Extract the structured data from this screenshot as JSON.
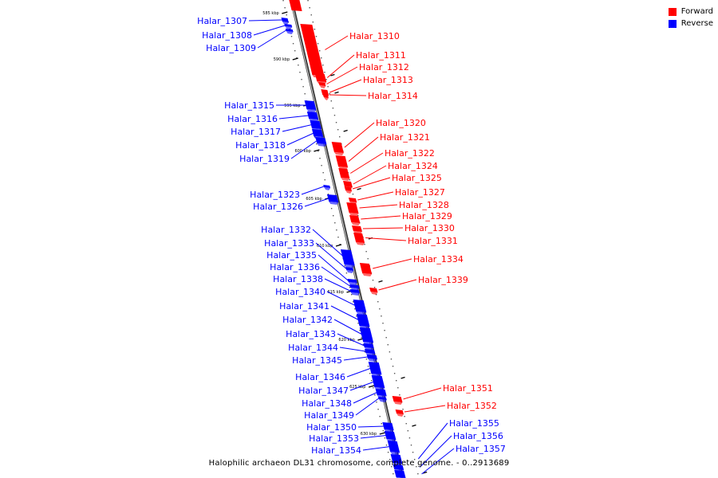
{
  "legend": {
    "forward_label": "Forward",
    "reverse_label": "Reverse",
    "forward_color": "#ff0000",
    "reverse_color": "#0000ff"
  },
  "caption": "Halophilic archaeon DL31 chromosome, complete genome. - 0..2913689",
  "track_color": "#808080",
  "ticks": [
    "585 kbp",
    "590 kbp",
    "595 kbp",
    "600 kbp",
    "605 kbp",
    "610 kbp",
    "615 kbp",
    "620 kbp",
    "625 kbp",
    "630 kbp"
  ],
  "forward_genes": [
    "Halar_1310",
    "Halar_1311",
    "Halar_1312",
    "Halar_1313",
    "Halar_1314",
    "Halar_1320",
    "Halar_1321",
    "Halar_1322",
    "Halar_1324",
    "Halar_1325",
    "Halar_1327",
    "Halar_1328",
    "Halar_1329",
    "Halar_1330",
    "Halar_1331",
    "Halar_1334",
    "Halar_1339",
    "Halar_1351",
    "Halar_1352"
  ],
  "reverse_genes": [
    "Halar_1307",
    "Halar_1308",
    "Halar_1309",
    "Halar_1315",
    "Halar_1316",
    "Halar_1317",
    "Halar_1318",
    "Halar_1319",
    "Halar_1323",
    "Halar_1326",
    "Halar_1332",
    "Halar_1333",
    "Halar_1335",
    "Halar_1336",
    "Halar_1338",
    "Halar_1340",
    "Halar_1341",
    "Halar_1342",
    "Halar_1343",
    "Halar_1344",
    "Halar_1345",
    "Halar_1346",
    "Halar_1347",
    "Halar_1348",
    "Halar_1349",
    "Halar_1350",
    "Halar_1353",
    "Halar_1354",
    "Halar_1355",
    "Halar_1356",
    "Halar_1357"
  ]
}
